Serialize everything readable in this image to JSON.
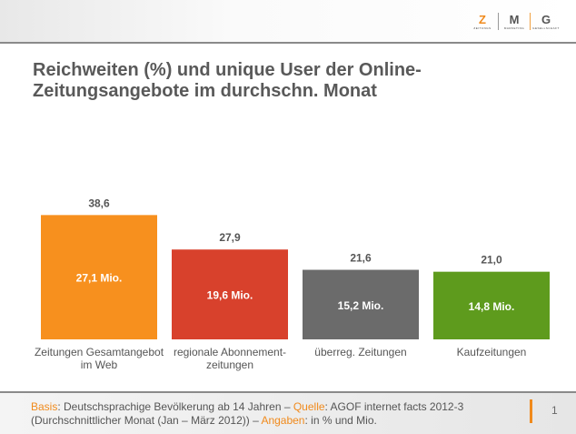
{
  "logo": {
    "letters": [
      "Z",
      "M",
      "G"
    ],
    "words": [
      "ZEITUNGS",
      "MARKETING",
      "GESELLSCHAFT"
    ]
  },
  "title_line1": "Reichweiten (%) und unique User der Online-",
  "title_line2": "Zeitungsangebote im durchschn. Monat",
  "chart_data": {
    "type": "bar",
    "categories": [
      [
        "Zeitungen Gesamtangebot",
        "im Web"
      ],
      [
        "regionale Abonnement-",
        "zeitungen"
      ],
      [
        "überreg. Zeitungen"
      ],
      [
        "Kaufzeitungen"
      ]
    ],
    "values": [
      38.6,
      27.9,
      21.6,
      21.0
    ],
    "value_labels": [
      "38,6",
      "27,9",
      "21,6",
      "21,0"
    ],
    "inner_labels": [
      "27,1 Mio.",
      "19,6 Mio.",
      "15,2 Mio.",
      "14,8 Mio."
    ],
    "colors": [
      "#f7901e",
      "#d8412c",
      "#6b6b6b",
      "#5e9b1d"
    ],
    "ylim": [
      0,
      40
    ],
    "grid": false
  },
  "footer": {
    "basis_label": "Basis",
    "basis_text": ": Deutschsprachige Bevölkerung ab 14 Jahren – ",
    "quelle_label": "Quelle",
    "quelle_text": ": AGOF internet facts 2012-3",
    "line2_text": "(Durchschnittlicher Monat (Jan – März 2012))  – ",
    "angaben_label": "Angaben",
    "angaben_text": ": in % und Mio.",
    "page": "1"
  }
}
